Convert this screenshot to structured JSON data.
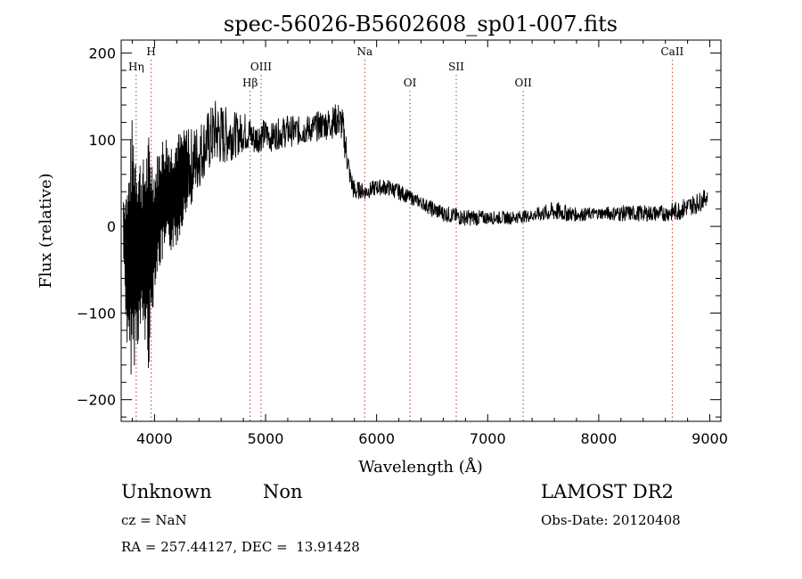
{
  "chart_data": {
    "type": "line",
    "title": "spec-56026-B5602608_sp01-007.fits",
    "xlabel": "Wavelength (Å)",
    "ylabel": "Flux (relative)",
    "xlim": [
      3700,
      9100
    ],
    "ylim": [
      -225,
      215
    ],
    "xticks": [
      4000,
      5000,
      6000,
      7000,
      8000,
      9000
    ],
    "yticks": [
      -200,
      -100,
      0,
      100,
      200
    ],
    "grid": false,
    "series": [
      {
        "color": "#000000",
        "envelope": [
          [
            3720,
            -40,
            40
          ],
          [
            3760,
            -170,
            60
          ],
          [
            3800,
            -175,
            130
          ],
          [
            3850,
            -140,
            90
          ],
          [
            3900,
            -130,
            80
          ],
          [
            3950,
            -170,
            110
          ],
          [
            4000,
            -70,
            70
          ],
          [
            4050,
            -50,
            100
          ],
          [
            4100,
            -40,
            110
          ],
          [
            4150,
            -30,
            100
          ],
          [
            4200,
            -25,
            110
          ],
          [
            4250,
            0,
            110
          ],
          [
            4300,
            15,
            115
          ],
          [
            4350,
            25,
            120
          ],
          [
            4400,
            40,
            125
          ],
          [
            4450,
            55,
            130
          ],
          [
            4500,
            60,
            140
          ],
          [
            4550,
            70,
            150
          ],
          [
            4600,
            65,
            145
          ],
          [
            4650,
            70,
            140
          ],
          [
            4700,
            75,
            140
          ],
          [
            4750,
            80,
            130
          ],
          [
            4800,
            85,
            135
          ],
          [
            4850,
            85,
            130
          ],
          [
            4900,
            80,
            120
          ],
          [
            4950,
            85,
            125
          ],
          [
            5000,
            88,
            125
          ],
          [
            5050,
            85,
            120
          ],
          [
            5100,
            88,
            125
          ],
          [
            5200,
            90,
            130
          ],
          [
            5300,
            92,
            128
          ],
          [
            5400,
            95,
            130
          ],
          [
            5500,
            98,
            135
          ],
          [
            5600,
            100,
            140
          ],
          [
            5650,
            102,
            145
          ],
          [
            5690,
            95,
            140
          ],
          [
            5720,
            70,
            115
          ],
          [
            5760,
            45,
            70
          ],
          [
            5800,
            25,
            55
          ],
          [
            5850,
            32,
            52
          ],
          [
            5900,
            30,
            50
          ],
          [
            6000,
            35,
            55
          ],
          [
            6100,
            35,
            55
          ],
          [
            6200,
            30,
            50
          ],
          [
            6300,
            25,
            42
          ],
          [
            6400,
            20,
            35
          ],
          [
            6500,
            10,
            30
          ],
          [
            6600,
            5,
            25
          ],
          [
            6700,
            2,
            22
          ],
          [
            6800,
            0,
            20
          ],
          [
            6900,
            0,
            20
          ],
          [
            7000,
            2,
            18
          ],
          [
            7200,
            2,
            18
          ],
          [
            7400,
            5,
            20
          ],
          [
            7600,
            5,
            30
          ],
          [
            7800,
            5,
            22
          ],
          [
            8000,
            8,
            22
          ],
          [
            8200,
            5,
            25
          ],
          [
            8400,
            5,
            25
          ],
          [
            8600,
            5,
            25
          ],
          [
            8700,
            5,
            30
          ],
          [
            8800,
            10,
            35
          ],
          [
            8900,
            15,
            40
          ],
          [
            8980,
            25,
            45
          ]
        ]
      }
    ],
    "lines": [
      {
        "label": "Hη",
        "x": 3835,
        "tier": 2
      },
      {
        "label": "H",
        "x": 3970,
        "tier": 1
      },
      {
        "label": "Hβ",
        "x": 4861,
        "tier": 3
      },
      {
        "label": "OIII",
        "x": 4959,
        "tier": 2
      },
      {
        "label": "Na",
        "x": 5893,
        "tier": 1
      },
      {
        "label": "OI",
        "x": 6300,
        "tier": 3
      },
      {
        "label": "SII",
        "x": 6717,
        "tier": 2
      },
      {
        "label": "OII",
        "x": 7320,
        "tier": 3
      },
      {
        "label": "CaII",
        "x": 8662,
        "tier": 1
      }
    ]
  },
  "info": {
    "class": "Unknown",
    "subclass": "Non",
    "cz": "cz = NaN",
    "radec": "RA = 257.44127, DEC =  13.91428",
    "survey": "LAMOST DR2",
    "obsdate": "Obs-Date: 20120408"
  }
}
